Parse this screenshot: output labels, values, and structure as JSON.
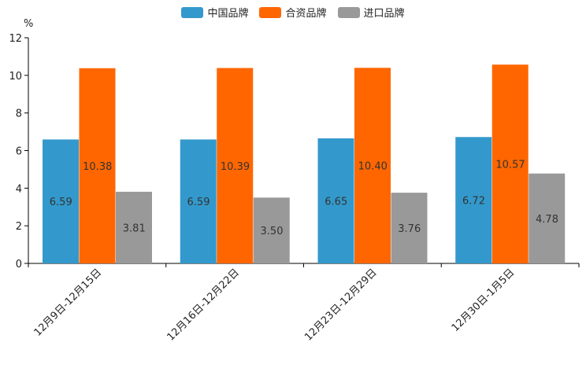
{
  "chart_data": {
    "type": "bar",
    "title": "",
    "ylabel": "%",
    "xlabel": "",
    "ylim": [
      0,
      12
    ],
    "yticks": [
      0,
      2,
      4,
      6,
      8,
      10,
      12
    ],
    "categories": [
      "12月9日-12月15日",
      "12月16日-12月22日",
      "12月23日-12月29日",
      "12月30日-1月5日"
    ],
    "series": [
      {
        "name": "中国品牌",
        "color": "#3399CC",
        "values": [
          6.59,
          6.59,
          6.65,
          6.72
        ],
        "labels": [
          "6.59",
          "6.59",
          "6.65",
          "6.72"
        ]
      },
      {
        "name": "合资品牌",
        "color": "#FF6600",
        "values": [
          10.38,
          10.39,
          10.4,
          10.57
        ],
        "labels": [
          "10.38",
          "10.39",
          "10.40",
          "10.57"
        ]
      },
      {
        "name": "进口品牌",
        "color": "#999999",
        "values": [
          3.81,
          3.5,
          3.76,
          4.78
        ],
        "labels": [
          "3.81",
          "3.50",
          "3.76",
          "4.78"
        ]
      }
    ],
    "legend_position": "top-center",
    "grid": false
  }
}
